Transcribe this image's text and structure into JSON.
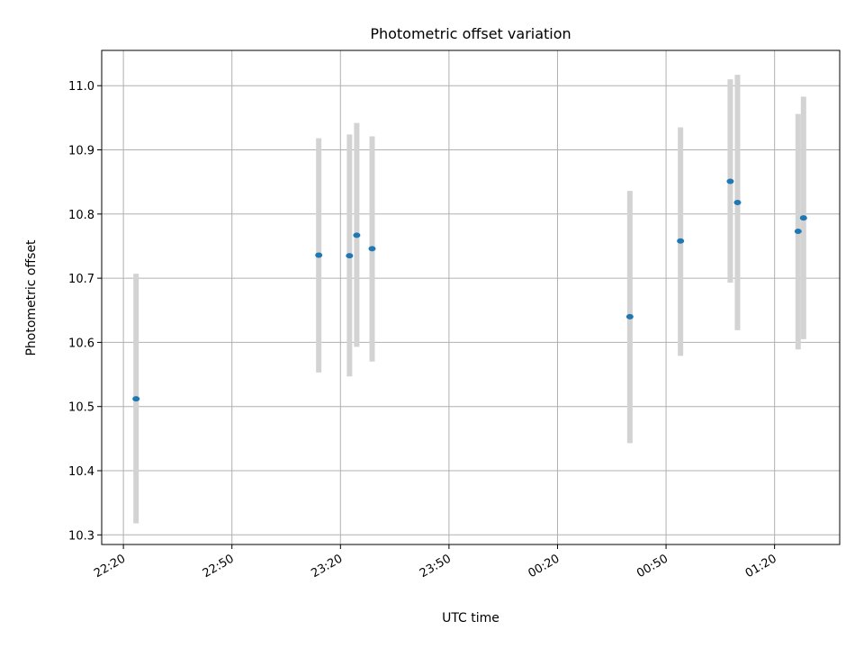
{
  "chart_data": {
    "type": "scatter",
    "title": "Photometric offset variation",
    "xlabel": "UTC time",
    "ylabel": "Photometric offset",
    "x_axis_kind": "time",
    "xlim": [
      "22:14",
      "01:38"
    ],
    "ylim": [
      10.285,
      11.055
    ],
    "x_ticks": [
      "22:20",
      "22:50",
      "23:20",
      "23:50",
      "00:20",
      "00:50",
      "01:20"
    ],
    "y_ticks": [
      "10.3",
      "10.4",
      "10.5",
      "10.6",
      "10.7",
      "10.8",
      "10.9",
      "11.0"
    ],
    "grid": true,
    "error_bars": true,
    "colors": {
      "points": "#1f77b4",
      "errorbars": "#d3d3d3",
      "grid": "#b0b0b0"
    },
    "points": [
      {
        "x": "22:23:30",
        "y": 10.512,
        "y_low": 10.318,
        "y_high": 10.707
      },
      {
        "x": "23:14:00",
        "y": 10.736,
        "y_low": 10.553,
        "y_high": 10.918
      },
      {
        "x": "23:22:30",
        "y": 10.735,
        "y_low": 10.547,
        "y_high": 10.924
      },
      {
        "x": "23:24:30",
        "y": 10.767,
        "y_low": 10.593,
        "y_high": 10.942
      },
      {
        "x": "23:28:45",
        "y": 10.746,
        "y_low": 10.57,
        "y_high": 10.921
      },
      {
        "x": "00:40:00",
        "y": 10.64,
        "y_low": 10.443,
        "y_high": 10.836
      },
      {
        "x": "00:54:00",
        "y": 10.758,
        "y_low": 10.579,
        "y_high": 10.935
      },
      {
        "x": "01:07:45",
        "y": 10.851,
        "y_low": 10.693,
        "y_high": 11.01
      },
      {
        "x": "01:09:45",
        "y": 10.818,
        "y_low": 10.619,
        "y_high": 11.017
      },
      {
        "x": "01:26:30",
        "y": 10.773,
        "y_low": 10.589,
        "y_high": 10.956
      },
      {
        "x": "01:28:00",
        "y": 10.794,
        "y_low": 10.605,
        "y_high": 10.983
      }
    ]
  }
}
